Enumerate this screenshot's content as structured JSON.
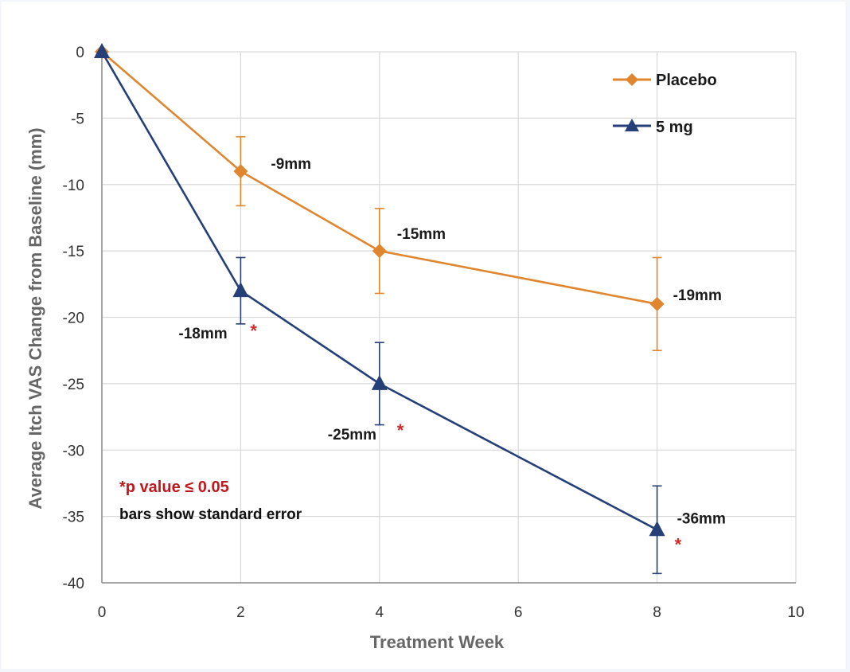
{
  "chart_data": {
    "type": "line",
    "title": "",
    "xlabel": "Treatment Week",
    "ylabel": "Average Itch VAS Change from Baseline (mm)",
    "xlim": [
      0,
      10
    ],
    "ylim": [
      -40,
      0
    ],
    "x_ticks": [
      0,
      2,
      4,
      6,
      8,
      10
    ],
    "y_ticks": [
      0,
      -5,
      -10,
      -15,
      -20,
      -25,
      -30,
      -35,
      -40
    ],
    "grid": "horizontal",
    "legend_position": "top-right",
    "series": [
      {
        "name": "Placebo",
        "color": "#e0862e",
        "marker": "diamond",
        "x": [
          0,
          2,
          4,
          8
        ],
        "values": [
          0,
          -9,
          -15,
          -19
        ],
        "error": [
          0,
          2.6,
          3.2,
          3.5
        ],
        "labels": [
          "",
          "-9mm",
          "-15mm",
          "-19mm"
        ],
        "significant": [
          false,
          false,
          false,
          false
        ]
      },
      {
        "name": "5 mg",
        "color": "#253f78",
        "marker": "triangle",
        "x": [
          0,
          2,
          4,
          8
        ],
        "values": [
          0,
          -18,
          -25,
          -36
        ],
        "error": [
          0,
          2.5,
          3.1,
          3.3
        ],
        "labels": [
          "",
          "-18mm",
          "-25mm",
          "-36mm"
        ],
        "significant": [
          false,
          true,
          true,
          true
        ]
      }
    ],
    "significance_marker": "*",
    "annotations": {
      "p_value": "*p value ≤ 0.05",
      "error_note": "bars show standard error"
    }
  }
}
